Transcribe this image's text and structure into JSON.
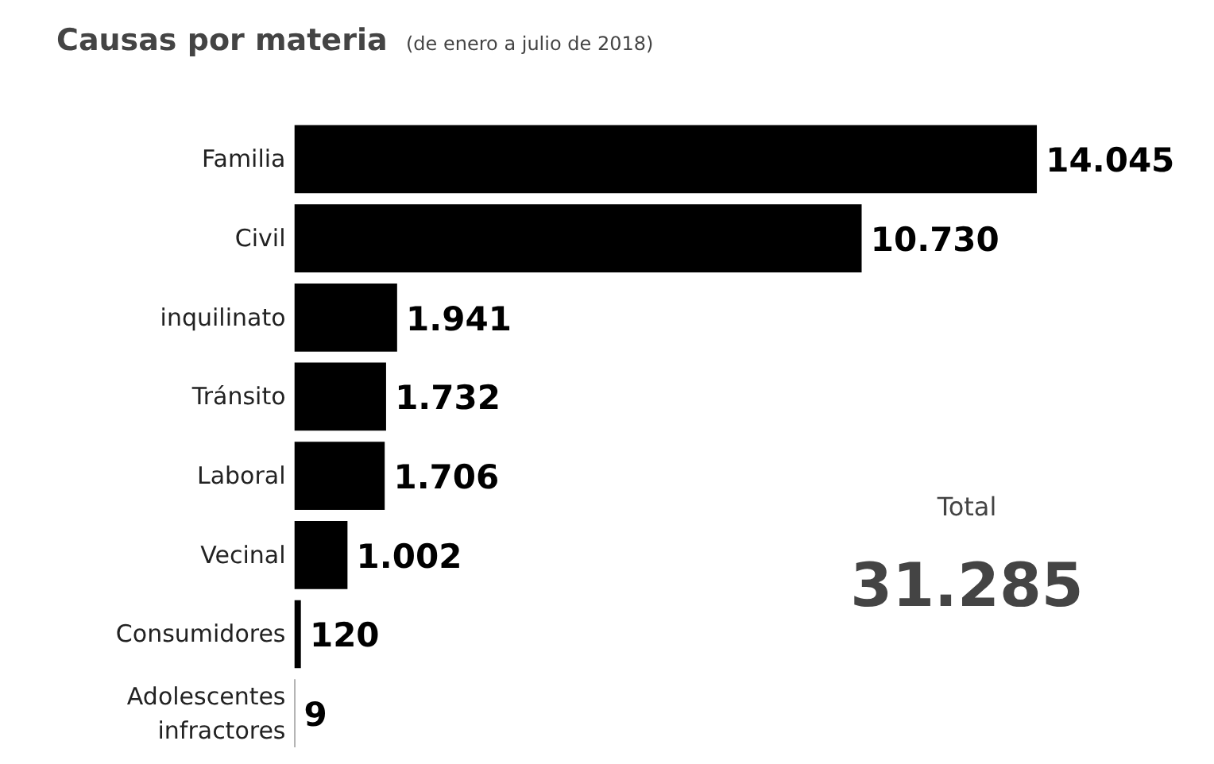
{
  "chart_data": {
    "type": "bar",
    "orientation": "horizontal",
    "title": "Causas por materia",
    "subtitle": "(de enero a julio de 2018)",
    "categories": [
      "Familia",
      "Civil",
      "inquilinato",
      "Tránsito",
      "Laboral",
      "Vecinal",
      "Consumidores",
      "Adolescentes\ninfractores"
    ],
    "values": [
      14045,
      10730,
      1941,
      1732,
      1706,
      1002,
      120,
      9
    ],
    "value_labels": [
      "14.045",
      "10.730",
      "1.941",
      "1.732",
      "1.706",
      "1.002",
      "120",
      "9"
    ],
    "color": "#000000",
    "annotations": [
      "Total",
      "31.285"
    ],
    "grid": false
  }
}
